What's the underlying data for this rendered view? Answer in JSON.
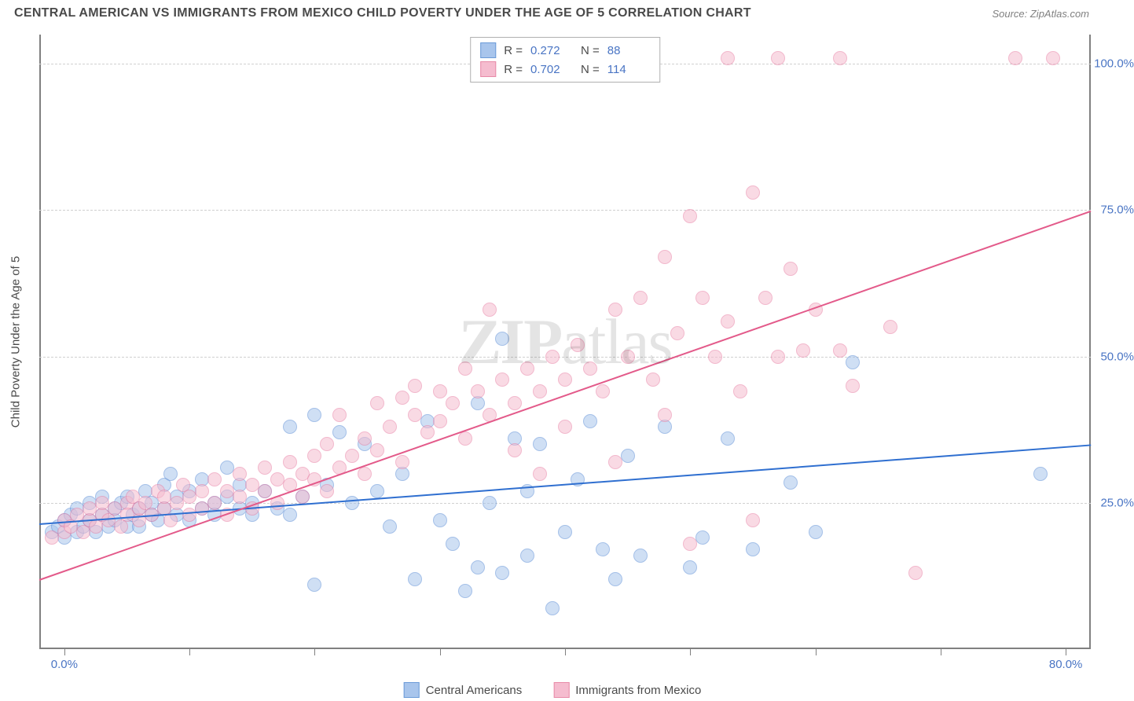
{
  "title": "CENTRAL AMERICAN VS IMMIGRANTS FROM MEXICO CHILD POVERTY UNDER THE AGE OF 5 CORRELATION CHART",
  "source": "Source: ZipAtlas.com",
  "watermark_text_bold": "ZIP",
  "watermark_text_light": "atlas",
  "y_axis_label": "Child Poverty Under the Age of 5",
  "chart": {
    "type": "scatter",
    "background_color": "#ffffff",
    "grid_color": "#d0d0d0",
    "axis_color": "#808080",
    "xlim": [
      -2,
      82
    ],
    "ylim": [
      0,
      105
    ],
    "y_ticks": [
      25,
      50,
      75,
      100
    ],
    "y_tick_labels": [
      "25.0%",
      "50.0%",
      "75.0%",
      "100.0%"
    ],
    "x_ticks": [
      0,
      10,
      20,
      30,
      40,
      50,
      60,
      70,
      80
    ],
    "x_tick_labels_shown": {
      "0": "0.0%",
      "80": "80.0%"
    },
    "point_radius": 9,
    "point_opacity": 0.55,
    "series": [
      {
        "name": "Central Americans",
        "color_fill": "#a8c5ec",
        "color_stroke": "#5b8dd6",
        "swatch_fill": "#a8c5ec",
        "swatch_border": "#6b9bd8",
        "R": "0.272",
        "N": "88",
        "trend": {
          "x1": -2,
          "y1": 21.5,
          "x2": 82,
          "y2": 35,
          "color": "#2f6fd0",
          "width": 2
        },
        "points": [
          [
            -1,
            20
          ],
          [
            -0.5,
            21
          ],
          [
            0,
            22
          ],
          [
            0,
            19
          ],
          [
            0.5,
            23
          ],
          [
            1,
            20
          ],
          [
            1,
            24
          ],
          [
            1.5,
            21
          ],
          [
            2,
            22
          ],
          [
            2,
            25
          ],
          [
            2.5,
            20
          ],
          [
            3,
            23
          ],
          [
            3,
            26
          ],
          [
            3.5,
            21
          ],
          [
            4,
            24
          ],
          [
            4,
            22
          ],
          [
            4.5,
            25
          ],
          [
            5,
            21
          ],
          [
            5,
            26
          ],
          [
            5.5,
            23
          ],
          [
            6,
            24
          ],
          [
            6,
            21
          ],
          [
            6.5,
            27
          ],
          [
            7,
            23
          ],
          [
            7,
            25
          ],
          [
            7.5,
            22
          ],
          [
            8,
            24
          ],
          [
            8,
            28
          ],
          [
            8.5,
            30
          ],
          [
            9,
            23
          ],
          [
            9,
            26
          ],
          [
            10,
            27
          ],
          [
            10,
            22
          ],
          [
            11,
            29
          ],
          [
            11,
            24
          ],
          [
            12,
            25
          ],
          [
            12,
            23
          ],
          [
            13,
            31
          ],
          [
            13,
            26
          ],
          [
            14,
            24
          ],
          [
            14,
            28
          ],
          [
            15,
            25
          ],
          [
            15,
            23
          ],
          [
            16,
            27
          ],
          [
            17,
            24
          ],
          [
            18,
            38
          ],
          [
            18,
            23
          ],
          [
            19,
            26
          ],
          [
            20,
            11
          ],
          [
            20,
            40
          ],
          [
            21,
            28
          ],
          [
            22,
            37
          ],
          [
            23,
            25
          ],
          [
            24,
            35
          ],
          [
            25,
            27
          ],
          [
            26,
            21
          ],
          [
            27,
            30
          ],
          [
            28,
            12
          ],
          [
            29,
            39
          ],
          [
            30,
            22
          ],
          [
            31,
            18
          ],
          [
            32,
            10
          ],
          [
            33,
            42
          ],
          [
            33,
            14
          ],
          [
            34,
            25
          ],
          [
            35,
            13
          ],
          [
            35,
            53
          ],
          [
            36,
            36
          ],
          [
            37,
            16
          ],
          [
            37,
            27
          ],
          [
            38,
            35
          ],
          [
            39,
            7
          ],
          [
            40,
            20
          ],
          [
            41,
            29
          ],
          [
            42,
            39
          ],
          [
            43,
            17
          ],
          [
            44,
            12
          ],
          [
            45,
            33
          ],
          [
            46,
            16
          ],
          [
            48,
            38
          ],
          [
            50,
            14
          ],
          [
            51,
            19
          ],
          [
            53,
            36
          ],
          [
            55,
            17
          ],
          [
            58,
            28.5
          ],
          [
            60,
            20
          ],
          [
            63,
            49
          ],
          [
            78,
            30
          ]
        ]
      },
      {
        "name": "Immigrants from Mexico",
        "color_fill": "#f5bccf",
        "color_stroke": "#e87fa4",
        "swatch_fill": "#f5bccf",
        "swatch_border": "#e88aa8",
        "R": "0.702",
        "N": "114",
        "trend": {
          "x1": -2,
          "y1": 12,
          "x2": 82,
          "y2": 75,
          "color": "#e35a8a",
          "width": 2
        },
        "points": [
          [
            -1,
            19
          ],
          [
            0,
            20
          ],
          [
            0,
            22
          ],
          [
            0.5,
            21
          ],
          [
            1,
            23
          ],
          [
            1.5,
            20
          ],
          [
            2,
            22
          ],
          [
            2,
            24
          ],
          [
            2.5,
            21
          ],
          [
            3,
            23
          ],
          [
            3,
            25
          ],
          [
            3.5,
            22
          ],
          [
            4,
            24
          ],
          [
            4.5,
            21
          ],
          [
            5,
            25
          ],
          [
            5,
            23
          ],
          [
            5.5,
            26
          ],
          [
            6,
            22
          ],
          [
            6,
            24
          ],
          [
            6.5,
            25
          ],
          [
            7,
            23
          ],
          [
            7.5,
            27
          ],
          [
            8,
            24
          ],
          [
            8,
            26
          ],
          [
            8.5,
            22
          ],
          [
            9,
            25
          ],
          [
            9.5,
            28
          ],
          [
            10,
            23
          ],
          [
            10,
            26
          ],
          [
            11,
            27
          ],
          [
            11,
            24
          ],
          [
            12,
            29
          ],
          [
            12,
            25
          ],
          [
            13,
            27
          ],
          [
            13,
            23
          ],
          [
            14,
            30
          ],
          [
            14,
            26
          ],
          [
            15,
            28
          ],
          [
            15,
            24
          ],
          [
            16,
            31
          ],
          [
            16,
            27
          ],
          [
            17,
            29
          ],
          [
            17,
            25
          ],
          [
            18,
            32
          ],
          [
            18,
            28
          ],
          [
            19,
            30
          ],
          [
            19,
            26
          ],
          [
            20,
            33
          ],
          [
            20,
            29
          ],
          [
            21,
            35
          ],
          [
            21,
            27
          ],
          [
            22,
            31
          ],
          [
            22,
            40
          ],
          [
            23,
            33
          ],
          [
            24,
            36
          ],
          [
            24,
            30
          ],
          [
            25,
            42
          ],
          [
            25,
            34
          ],
          [
            26,
            38
          ],
          [
            27,
            43
          ],
          [
            27,
            32
          ],
          [
            28,
            40
          ],
          [
            28,
            45
          ],
          [
            29,
            37
          ],
          [
            30,
            44
          ],
          [
            30,
            39
          ],
          [
            31,
            42
          ],
          [
            32,
            48
          ],
          [
            32,
            36
          ],
          [
            33,
            44
          ],
          [
            34,
            40
          ],
          [
            34,
            58
          ],
          [
            35,
            46
          ],
          [
            36,
            42
          ],
          [
            36,
            34
          ],
          [
            37,
            48
          ],
          [
            38,
            44
          ],
          [
            38,
            30
          ],
          [
            39,
            50
          ],
          [
            40,
            46
          ],
          [
            40,
            38
          ],
          [
            41,
            52
          ],
          [
            42,
            48
          ],
          [
            43,
            44
          ],
          [
            44,
            58
          ],
          [
            44,
            32
          ],
          [
            45,
            50
          ],
          [
            46,
            60
          ],
          [
            47,
            46
          ],
          [
            48,
            67
          ],
          [
            48,
            40
          ],
          [
            49,
            54
          ],
          [
            50,
            74
          ],
          [
            50,
            18
          ],
          [
            51,
            60
          ],
          [
            52,
            50
          ],
          [
            53,
            56
          ],
          [
            54,
            44
          ],
          [
            55,
            78
          ],
          [
            55,
            22
          ],
          [
            56,
            60
          ],
          [
            57,
            50
          ],
          [
            58,
            65
          ],
          [
            59,
            51
          ],
          [
            60,
            58
          ],
          [
            62,
            51
          ],
          [
            63,
            45
          ],
          [
            66,
            55
          ],
          [
            68,
            13
          ],
          [
            53,
            101
          ],
          [
            57,
            101
          ],
          [
            62,
            101
          ],
          [
            76,
            101
          ],
          [
            79,
            101
          ]
        ]
      }
    ]
  },
  "bottom_legend": [
    {
      "label": "Central Americans",
      "fill": "#a8c5ec",
      "border": "#6b9bd8"
    },
    {
      "label": "Immigrants from Mexico",
      "fill": "#f5bccf",
      "border": "#e88aa8"
    }
  ]
}
